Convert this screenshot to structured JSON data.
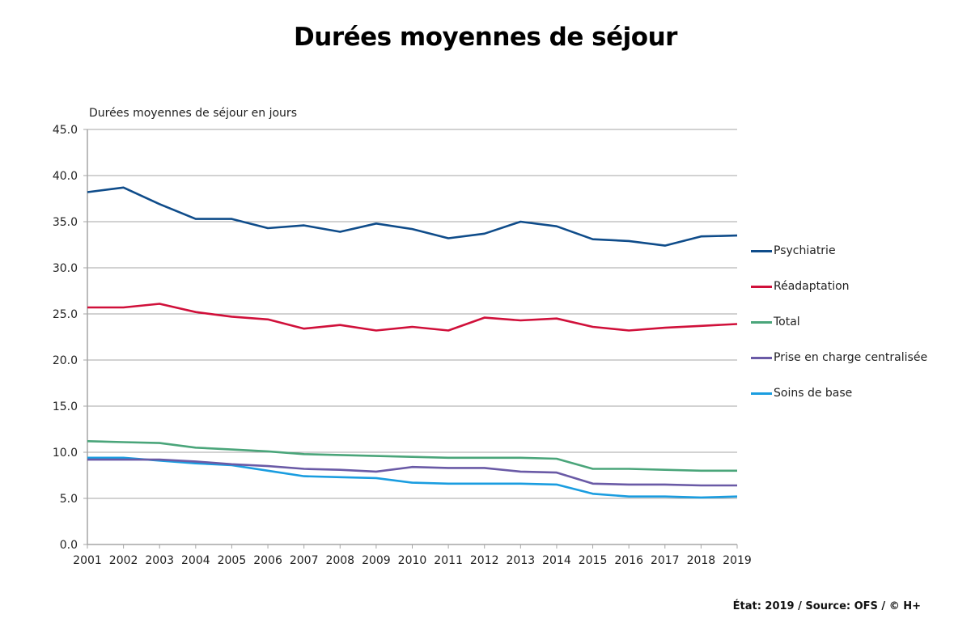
{
  "header": {
    "title": "Durées moyennes de séjour"
  },
  "footer": {
    "source": "État: 2019 / Source: OFS / © H+"
  },
  "chart_data": {
    "type": "line",
    "title": "Durées moyennes de séjour",
    "xlabel": "",
    "ylabel": "Durées moyennes de séjour en jours",
    "x": [
      2001,
      2002,
      2003,
      2004,
      2005,
      2006,
      2007,
      2008,
      2009,
      2010,
      2011,
      2012,
      2013,
      2014,
      2015,
      2016,
      2017,
      2018,
      2019
    ],
    "ylim": [
      0,
      45
    ],
    "yticks": [
      "0.0",
      "5.0",
      "10.0",
      "15.0",
      "20.0",
      "25.0",
      "30.0",
      "35.0",
      "40.0",
      "45.0"
    ],
    "grid": true,
    "legend_position": "right",
    "series": [
      {
        "name": "Psychiatrie",
        "color": "#0f4c8a",
        "values": [
          38.2,
          38.7,
          36.9,
          35.3,
          35.3,
          34.3,
          34.6,
          33.9,
          34.8,
          34.2,
          33.2,
          33.7,
          35.0,
          34.5,
          33.1,
          32.9,
          32.4,
          33.4,
          33.5
        ]
      },
      {
        "name": "Réadaptation",
        "color": "#d0103a",
        "values": [
          25.7,
          25.7,
          26.1,
          25.2,
          24.7,
          24.4,
          23.4,
          23.8,
          23.2,
          23.6,
          23.2,
          24.6,
          24.3,
          24.5,
          23.6,
          23.2,
          23.5,
          23.7,
          23.9
        ]
      },
      {
        "name": "Total",
        "color": "#4aa57a",
        "values": [
          11.2,
          11.1,
          11.0,
          10.5,
          10.3,
          10.1,
          9.8,
          9.7,
          9.6,
          9.5,
          9.4,
          9.4,
          9.4,
          9.3,
          8.2,
          8.2,
          8.1,
          8.0,
          8.0
        ]
      },
      {
        "name": "Prise en charge centralisée",
        "color": "#6a5aa6",
        "values": [
          9.2,
          9.2,
          9.2,
          9.0,
          8.7,
          8.5,
          8.2,
          8.1,
          7.9,
          8.4,
          8.3,
          8.3,
          7.9,
          7.8,
          6.6,
          6.5,
          6.5,
          6.4,
          6.4
        ]
      },
      {
        "name": "Soins de base",
        "color": "#1a9de0",
        "values": [
          9.4,
          9.4,
          9.1,
          8.8,
          8.6,
          8.0,
          7.4,
          7.3,
          7.2,
          6.7,
          6.6,
          6.6,
          6.6,
          6.5,
          5.5,
          5.2,
          5.2,
          5.1,
          5.2
        ]
      }
    ]
  }
}
